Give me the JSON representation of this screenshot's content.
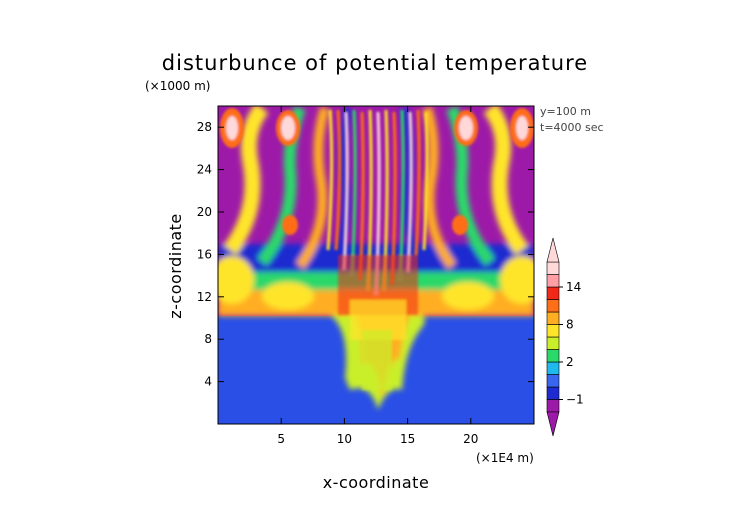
{
  "chart_data": {
    "type": "heatmap",
    "title": "disturbunce of potential temperature",
    "xlabel": "x-coordinate",
    "ylabel": "z-coordinate",
    "x_unit": "(×1E4 m)",
    "y_unit": "(×1000 m)",
    "info_lines": [
      "y=100 m",
      "t=4000 sec"
    ],
    "x_range": [
      0,
      25
    ],
    "y_range": [
      0,
      30
    ],
    "x_ticks": [
      5,
      10,
      15,
      20
    ],
    "y_ticks": [
      4,
      8,
      12,
      16,
      20,
      24,
      28
    ],
    "colorbar": {
      "levels": [
        -2,
        -1,
        0,
        1,
        2,
        4,
        6,
        8,
        10,
        12,
        14,
        16
      ],
      "colors": [
        "#9d1aa8",
        "#1e2bd0",
        "#3a66ef",
        "#20b9ee",
        "#2bd86a",
        "#c9ef2a",
        "#ffe52a",
        "#ffad22",
        "#ff6e18",
        "#f22818",
        "#ff9fa5",
        "#ffd8da"
      ],
      "tick_labels": [
        "14",
        "8",
        "2",
        "−1"
      ],
      "tick_values": [
        14,
        8,
        2,
        -1
      ]
    },
    "legend": "right",
    "grid": false
  }
}
